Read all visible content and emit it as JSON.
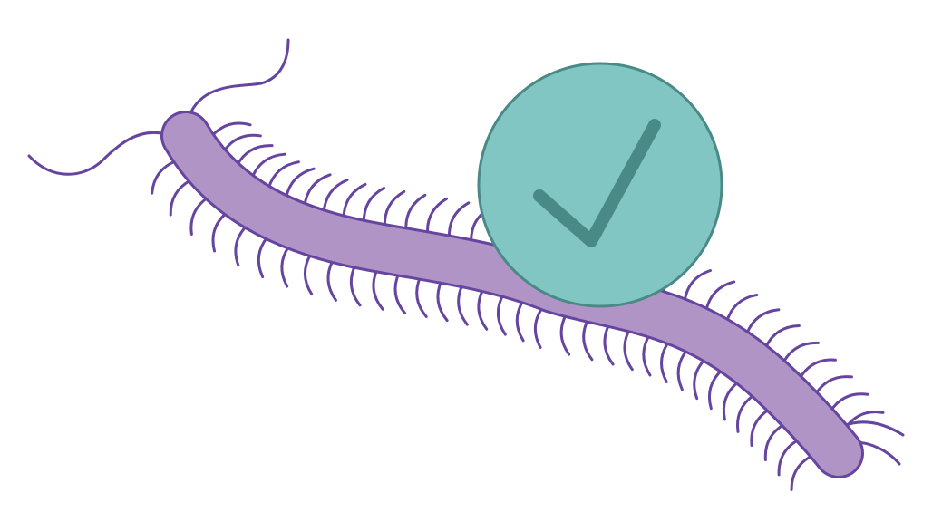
{
  "illustration": {
    "subject": "centipede-icon",
    "badge": "checkmark-icon",
    "colors": {
      "background": "#ffffff",
      "body_fill": "#b094c6",
      "outline": "#6645a0",
      "badge_fill": "#82c6c4",
      "badge_stroke": "#4a8a86",
      "check": "#4a8a86"
    }
  }
}
